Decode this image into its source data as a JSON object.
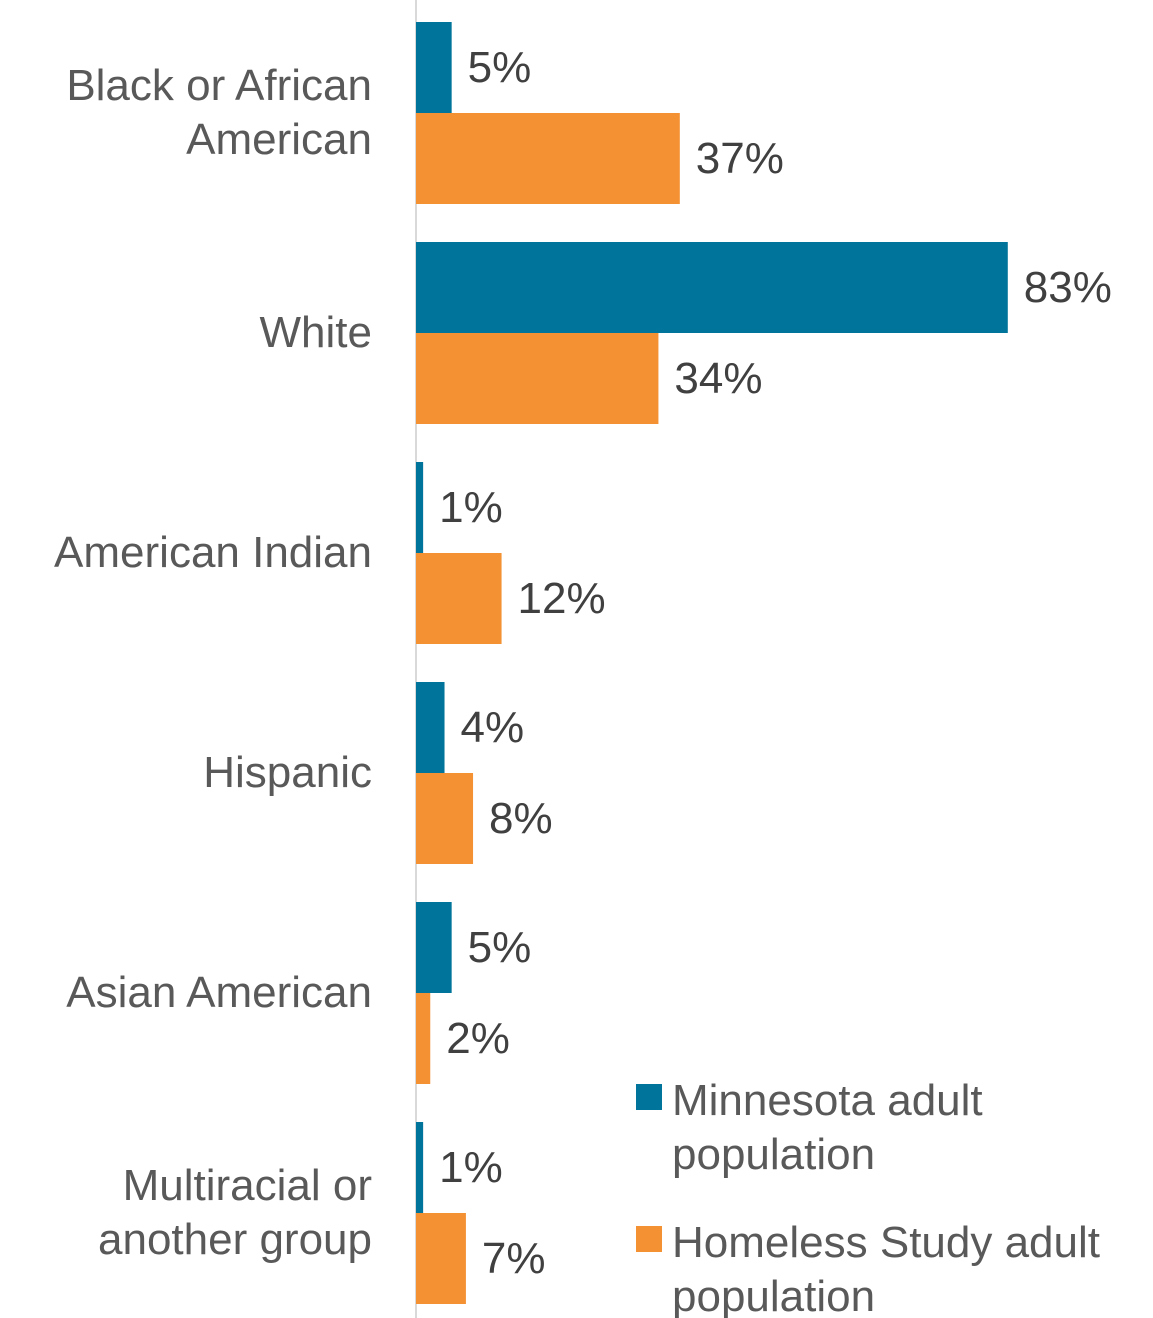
{
  "chart_data": {
    "type": "hbar",
    "categories": [
      "Black or African American",
      "White",
      "American Indian",
      "Hispanic",
      "Asian American",
      "Multiracial or another group"
    ],
    "series": [
      {
        "name": "Minnesota adult population",
        "color": "#00749a",
        "values": [
          5,
          83,
          1,
          4,
          5,
          1
        ],
        "value_labels": [
          "5%",
          "83%",
          "1%",
          "4%",
          "5%",
          "1%"
        ]
      },
      {
        "name": "Homeless Study adult population",
        "color": "#f39133",
        "values": [
          37,
          34,
          12,
          8,
          2,
          7
        ],
        "value_labels": [
          "37%",
          "34%",
          "12%",
          "8%",
          "2%",
          "7%"
        ]
      }
    ],
    "xlim": [
      0,
      100
    ],
    "legend": "bottom-right"
  }
}
